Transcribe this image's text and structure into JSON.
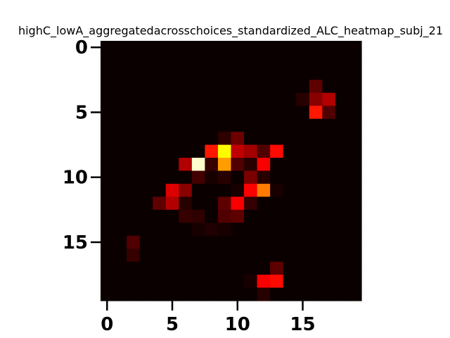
{
  "chart_data": {
    "type": "heatmap",
    "title": "highC_lowA_aggregatedacrosschoices_standardized_ALC_heatmap_subj_21",
    "xlabel": "",
    "ylabel": "",
    "colormap": "hot",
    "rows": 20,
    "cols": 20,
    "xlim": [
      -0.5,
      19.5
    ],
    "ylim": [
      19.5,
      -0.5
    ],
    "x_ticks": [
      0,
      5,
      10,
      15
    ],
    "y_ticks": [
      0,
      5,
      10,
      15
    ],
    "x_tick_labels": [
      "0",
      "5",
      "10",
      "15"
    ],
    "y_tick_labels": [
      "0",
      "5",
      "10",
      "15"
    ],
    "grid": false,
    "vmin": 0,
    "vmax": 1,
    "z": [
      [
        0,
        0,
        0,
        0,
        0,
        0,
        0,
        0,
        0,
        0,
        0,
        0,
        0,
        0,
        0,
        0,
        0,
        0,
        0,
        0
      ],
      [
        0,
        0,
        0,
        0,
        0,
        0,
        0,
        0,
        0,
        0,
        0,
        0,
        0,
        0,
        0,
        0,
        0,
        0,
        0,
        0
      ],
      [
        0,
        0,
        0,
        0,
        0,
        0,
        0,
        0,
        0,
        0,
        0,
        0,
        0,
        0,
        0,
        0,
        0,
        0,
        0,
        0
      ],
      [
        0,
        0,
        0,
        0,
        0,
        0,
        0,
        0,
        0,
        0,
        0,
        0,
        0,
        0,
        0,
        0,
        0.12,
        0,
        0,
        0
      ],
      [
        0,
        0,
        0,
        0,
        0,
        0,
        0,
        0,
        0,
        0,
        0,
        0,
        0,
        0,
        0,
        0.04,
        0.18,
        0.24,
        0,
        0
      ],
      [
        0,
        0,
        0,
        0,
        0,
        0,
        0,
        0,
        0,
        0,
        0,
        0,
        0,
        0,
        0,
        0,
        0.4,
        0.1,
        0,
        0
      ],
      [
        0,
        0,
        0,
        0,
        0,
        0,
        0,
        0,
        0,
        0,
        0,
        0,
        0,
        0,
        0,
        0,
        0,
        0,
        0,
        0
      ],
      [
        0,
        0,
        0,
        0,
        0,
        0,
        0,
        0,
        0,
        0.05,
        0.14,
        0,
        0,
        0,
        0,
        0,
        0,
        0,
        0,
        0
      ],
      [
        0,
        0,
        0,
        0,
        0,
        0,
        0,
        0,
        0.4,
        0.74,
        0.26,
        0.22,
        0.1,
        0.38,
        0,
        0,
        0,
        0,
        0,
        0
      ],
      [
        0,
        0,
        0,
        0,
        0,
        0,
        0.24,
        0.95,
        0.06,
        0.6,
        0.1,
        0.04,
        0.34,
        0,
        0,
        0,
        0,
        0,
        0,
        0
      ],
      [
        0,
        0,
        0,
        0,
        0,
        0,
        0,
        0.08,
        0.02,
        0.04,
        0,
        0.16,
        0.04,
        0,
        0,
        0,
        0,
        0,
        0,
        0
      ],
      [
        0,
        0,
        0,
        0,
        0,
        0.3,
        0.18,
        0,
        0,
        0,
        0.02,
        0.36,
        0.55,
        0.02,
        0,
        0,
        0,
        0,
        0,
        0
      ],
      [
        0,
        0,
        0,
        0,
        0.12,
        0.24,
        0.04,
        0,
        0,
        0.12,
        0.34,
        0.06,
        0,
        0,
        0,
        0,
        0,
        0,
        0,
        0
      ],
      [
        0,
        0,
        0,
        0,
        0,
        0,
        0.06,
        0.05,
        0,
        0.1,
        0.12,
        0,
        0,
        0,
        0,
        0,
        0,
        0,
        0,
        0
      ],
      [
        0,
        0,
        0,
        0,
        0,
        0,
        0,
        0.02,
        0.03,
        0.02,
        0,
        0,
        0,
        0,
        0,
        0,
        0,
        0,
        0,
        0
      ],
      [
        0,
        0,
        0.1,
        0,
        0,
        0,
        0,
        0,
        0,
        0,
        0,
        0,
        0,
        0,
        0,
        0,
        0,
        0,
        0,
        0
      ],
      [
        0,
        0,
        0.06,
        0,
        0,
        0,
        0,
        0,
        0,
        0,
        0,
        0,
        0,
        0,
        0,
        0,
        0,
        0,
        0,
        0
      ],
      [
        0,
        0,
        0,
        0,
        0,
        0,
        0,
        0,
        0,
        0,
        0,
        0,
        0,
        0.12,
        0,
        0,
        0,
        0,
        0,
        0
      ],
      [
        0,
        0,
        0,
        0,
        0,
        0,
        0,
        0,
        0,
        0,
        0,
        0.02,
        0.34,
        0.38,
        0,
        0,
        0,
        0,
        0,
        0
      ],
      [
        0,
        0,
        0,
        0,
        0,
        0,
        0,
        0,
        0,
        0,
        0,
        0,
        0.04,
        0,
        0,
        0,
        0,
        0,
        0,
        0
      ]
    ]
  }
}
